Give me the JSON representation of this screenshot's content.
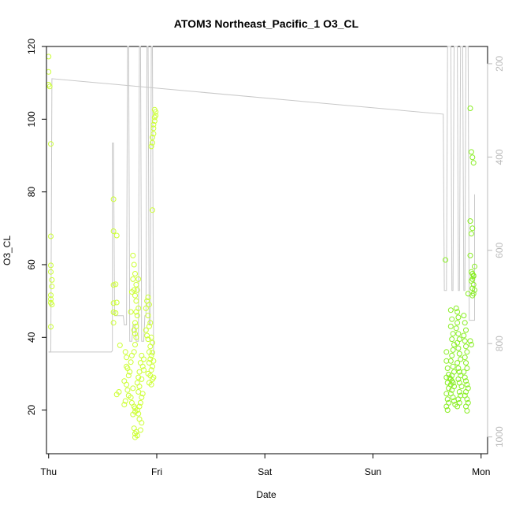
{
  "chart_data": {
    "type": "scatter",
    "title": "ATOM3 Northeast_Pacific_1 O3_CL",
    "xlabel": "Date",
    "ylabel": "O3_CL",
    "x_ticks": [
      "Thu",
      "Fri",
      "Sat",
      "Sun",
      "Mon"
    ],
    "xlim": [
      -0.02,
      4.06
    ],
    "ylim": [
      8,
      120
    ],
    "y_ticks": [
      20,
      40,
      60,
      80,
      100,
      120
    ],
    "y2_ticks": [
      200,
      400,
      600,
      800,
      1000
    ],
    "y2lim": [
      1036,
      163
    ],
    "grid": false,
    "colors": {
      "axis": "#000000",
      "secondary_line": "#c8c8c8",
      "secondary_ticks": "#bbbbbb",
      "points_early": "#ccff33",
      "points_late": "#88ee22"
    },
    "series": [
      {
        "kind": "points",
        "color": "#ccff33",
        "points": [
          [
            0.0,
            117.2
          ],
          [
            0.0,
            113.0
          ],
          [
            0.0,
            109.5
          ],
          [
            0.01,
            109.0
          ],
          [
            0.02,
            93.2
          ],
          [
            0.02,
            67.8
          ],
          [
            0.02,
            59.8
          ],
          [
            0.02,
            58.0
          ],
          [
            0.03,
            55.8
          ],
          [
            0.03,
            54.0
          ],
          [
            0.02,
            51.6
          ],
          [
            0.02,
            50.5
          ],
          [
            0.02,
            49.5
          ],
          [
            0.03,
            49.0
          ],
          [
            0.02,
            42.9
          ],
          [
            0.6,
            78.0
          ],
          [
            0.6,
            69.2
          ],
          [
            0.63,
            68.0
          ],
          [
            0.62,
            54.6
          ],
          [
            0.6,
            54.4
          ],
          [
            0.6,
            49.4
          ],
          [
            0.63,
            49.6
          ],
          [
            0.6,
            46.9
          ],
          [
            0.62,
            46.7
          ],
          [
            0.6,
            44.0
          ],
          [
            0.66,
            37.8
          ],
          [
            0.65,
            25.0
          ],
          [
            0.63,
            24.3
          ],
          [
            0.71,
            36.0
          ],
          [
            0.72,
            34.5
          ],
          [
            0.72,
            32.0
          ],
          [
            0.73,
            31.5
          ],
          [
            0.74,
            29.5
          ],
          [
            0.7,
            28.0
          ],
          [
            0.72,
            27.0
          ],
          [
            0.73,
            25.5
          ],
          [
            0.74,
            24.0
          ],
          [
            0.71,
            22.5
          ],
          [
            0.7,
            21.5
          ],
          [
            0.75,
            30.5
          ],
          [
            0.76,
            33.2
          ],
          [
            0.77,
            35.0
          ],
          [
            0.78,
            26.0
          ],
          [
            0.76,
            23.5
          ],
          [
            0.77,
            22.0
          ],
          [
            0.79,
            21.0
          ],
          [
            0.8,
            20.5
          ],
          [
            0.8,
            19.5
          ],
          [
            0.78,
            18.8
          ],
          [
            0.79,
            15.0
          ],
          [
            0.8,
            13.5
          ],
          [
            0.8,
            12.5
          ],
          [
            0.81,
            14.0
          ],
          [
            0.82,
            13.0
          ],
          [
            0.85,
            14.5
          ],
          [
            0.86,
            16.5
          ],
          [
            0.84,
            17.5
          ],
          [
            0.83,
            19.0
          ],
          [
            0.82,
            20.0
          ],
          [
            0.84,
            21.0
          ],
          [
            0.85,
            22.0
          ],
          [
            0.86,
            23.5
          ],
          [
            0.87,
            24.5
          ],
          [
            0.83,
            25.0
          ],
          [
            0.84,
            26.5
          ],
          [
            0.82,
            27.5
          ],
          [
            0.86,
            28.5
          ],
          [
            0.83,
            29.0
          ],
          [
            0.84,
            30.5
          ],
          [
            0.88,
            31.0
          ],
          [
            0.87,
            32.0
          ],
          [
            0.85,
            33.0
          ],
          [
            0.88,
            34.0
          ],
          [
            0.86,
            35.0
          ],
          [
            0.79,
            36.0
          ],
          [
            0.8,
            38.0
          ],
          [
            0.81,
            40.0
          ],
          [
            0.8,
            41.0
          ],
          [
            0.79,
            42.0
          ],
          [
            0.81,
            43.0
          ],
          [
            0.8,
            44.0
          ],
          [
            0.82,
            46.0
          ],
          [
            0.81,
            47.0
          ],
          [
            0.83,
            48.0
          ],
          [
            0.81,
            50.0
          ],
          [
            0.8,
            51.5
          ],
          [
            0.82,
            53.0
          ],
          [
            0.81,
            54.5
          ],
          [
            0.83,
            56.0
          ],
          [
            0.8,
            57.5
          ],
          [
            0.79,
            60.0
          ],
          [
            0.78,
            62.5
          ],
          [
            0.78,
            56.0
          ],
          [
            0.79,
            53.0
          ],
          [
            0.77,
            52.5
          ],
          [
            0.76,
            47.0
          ],
          [
            0.9,
            48.0
          ],
          [
            0.91,
            50.0
          ],
          [
            0.92,
            51.0
          ],
          [
            0.93,
            49.0
          ],
          [
            0.92,
            46.0
          ],
          [
            0.94,
            44.0
          ],
          [
            0.93,
            43.0
          ],
          [
            0.9,
            42.0
          ],
          [
            0.91,
            40.5
          ],
          [
            0.92,
            39.5
          ],
          [
            0.94,
            37.5
          ],
          [
            0.93,
            36.0
          ],
          [
            0.95,
            35.0
          ],
          [
            0.94,
            34.0
          ],
          [
            0.93,
            33.0
          ],
          [
            0.96,
            32.0
          ],
          [
            0.95,
            31.0
          ],
          [
            0.92,
            30.0
          ],
          [
            0.94,
            29.5
          ],
          [
            0.97,
            29.0
          ],
          [
            0.96,
            28.5
          ],
          [
            0.93,
            27.5
          ],
          [
            0.95,
            27.0
          ],
          [
            0.96,
            35.8
          ],
          [
            0.97,
            33.5
          ],
          [
            0.96,
            75.0
          ],
          [
            0.96,
            93.5
          ],
          [
            0.97,
            96.0
          ],
          [
            0.97,
            97.5
          ],
          [
            0.98,
            99.5
          ],
          [
            0.98,
            100.5
          ],
          [
            0.99,
            101.0
          ],
          [
            0.99,
            102.0
          ],
          [
            0.98,
            102.6
          ],
          [
            0.97,
            98.5
          ],
          [
            0.96,
            95.0
          ],
          [
            0.95,
            92.5
          ],
          [
            0.95,
            40.0
          ],
          [
            0.96,
            38.5
          ]
        ]
      },
      {
        "kind": "points",
        "color": "#88ee22",
        "points": [
          [
            3.67,
            61.3
          ],
          [
            3.68,
            36.0
          ],
          [
            3.68,
            33.5
          ],
          [
            3.69,
            31.5
          ],
          [
            3.68,
            29.0
          ],
          [
            3.69,
            27.5
          ],
          [
            3.7,
            26.0
          ],
          [
            3.68,
            24.5
          ],
          [
            3.69,
            23.0
          ],
          [
            3.7,
            22.0
          ],
          [
            3.68,
            21.0
          ],
          [
            3.69,
            20.0
          ],
          [
            3.72,
            47.5
          ],
          [
            3.73,
            45.0
          ],
          [
            3.72,
            43.0
          ],
          [
            3.74,
            41.0
          ],
          [
            3.73,
            39.5
          ],
          [
            3.75,
            38.0
          ],
          [
            3.74,
            36.5
          ],
          [
            3.73,
            35.0
          ],
          [
            3.72,
            33.5
          ],
          [
            3.74,
            32.0
          ],
          [
            3.75,
            30.5
          ],
          [
            3.73,
            29.5
          ],
          [
            3.72,
            28.5
          ],
          [
            3.74,
            27.5
          ],
          [
            3.75,
            26.5
          ],
          [
            3.73,
            25.5
          ],
          [
            3.72,
            24.5
          ],
          [
            3.74,
            23.5
          ],
          [
            3.75,
            22.5
          ],
          [
            3.76,
            21.5
          ],
          [
            3.73,
            28.0
          ],
          [
            3.71,
            28.8
          ],
          [
            3.72,
            27.0
          ],
          [
            3.7,
            29.8
          ],
          [
            3.77,
            48.0
          ],
          [
            3.78,
            47.0
          ],
          [
            3.79,
            45.5
          ],
          [
            3.78,
            44.0
          ],
          [
            3.77,
            42.5
          ],
          [
            3.79,
            41.0
          ],
          [
            3.8,
            39.5
          ],
          [
            3.78,
            38.5
          ],
          [
            3.79,
            37.0
          ],
          [
            3.8,
            35.5
          ],
          [
            3.81,
            34.0
          ],
          [
            3.78,
            33.0
          ],
          [
            3.79,
            31.5
          ],
          [
            3.8,
            30.5
          ],
          [
            3.81,
            29.5
          ],
          [
            3.79,
            28.5
          ],
          [
            3.8,
            27.5
          ],
          [
            3.82,
            26.5
          ],
          [
            3.8,
            25.0
          ],
          [
            3.81,
            24.0
          ],
          [
            3.79,
            23.0
          ],
          [
            3.8,
            22.0
          ],
          [
            3.78,
            21.0
          ],
          [
            3.84,
            46.0
          ],
          [
            3.85,
            44.0
          ],
          [
            3.86,
            42.0
          ],
          [
            3.84,
            40.5
          ],
          [
            3.85,
            39.0
          ],
          [
            3.86,
            37.5
          ],
          [
            3.87,
            36.0
          ],
          [
            3.85,
            34.5
          ],
          [
            3.86,
            33.0
          ],
          [
            3.87,
            31.5
          ],
          [
            3.84,
            30.5
          ],
          [
            3.85,
            29.0
          ],
          [
            3.86,
            28.0
          ],
          [
            3.87,
            27.0
          ],
          [
            3.88,
            26.0
          ],
          [
            3.86,
            25.0
          ],
          [
            3.85,
            24.0
          ],
          [
            3.87,
            23.0
          ],
          [
            3.88,
            22.0
          ],
          [
            3.86,
            21.0
          ],
          [
            3.87,
            19.8
          ],
          [
            3.88,
            52.0
          ],
          [
            3.9,
            103.0
          ],
          [
            3.91,
            91.0
          ],
          [
            3.92,
            89.5
          ],
          [
            3.93,
            88.0
          ],
          [
            3.9,
            72.0
          ],
          [
            3.92,
            70.0
          ],
          [
            3.91,
            68.5
          ],
          [
            3.9,
            62.5
          ],
          [
            3.91,
            58.0
          ],
          [
            3.92,
            57.5
          ],
          [
            3.93,
            57.0
          ],
          [
            3.92,
            56.0
          ],
          [
            3.91,
            55.5
          ],
          [
            3.93,
            54.5
          ],
          [
            3.92,
            53.5
          ],
          [
            3.94,
            53.0
          ],
          [
            3.93,
            52.0
          ],
          [
            3.92,
            51.5
          ],
          [
            3.94,
            59.5
          ],
          [
            3.93,
            56.8
          ],
          [
            3.91,
            38.0
          ],
          [
            3.9,
            39.0
          ]
        ]
      },
      {
        "kind": "line",
        "axis": "right",
        "color": "#c8c8c8",
        "points": [
          [
            0.0,
            818
          ],
          [
            0.02,
            818
          ],
          [
            0.03,
            232
          ],
          [
            3.65,
            308
          ],
          [
            3.66,
            686
          ],
          [
            3.68,
            686
          ],
          [
            3.69,
            163
          ],
          [
            3.72,
            163
          ],
          [
            3.73,
            686
          ],
          [
            3.74,
            686
          ],
          [
            3.75,
            163
          ],
          [
            3.78,
            163
          ],
          [
            3.79,
            686
          ],
          [
            3.8,
            686
          ],
          [
            3.81,
            163
          ],
          [
            3.83,
            163
          ],
          [
            3.84,
            686
          ],
          [
            3.85,
            686
          ],
          [
            3.86,
            163
          ],
          [
            3.88,
            163
          ],
          [
            3.89,
            750
          ],
          [
            3.94,
            750
          ],
          [
            3.94,
            480
          ]
        ]
      },
      {
        "kind": "line",
        "axis": "right",
        "color": "#c8c8c8",
        "points": [
          [
            0.0,
            818
          ],
          [
            0.58,
            818
          ],
          [
            0.59,
            815
          ],
          [
            0.59,
            370
          ],
          [
            0.6,
            370
          ],
          [
            0.61,
            740
          ],
          [
            0.69,
            740
          ],
          [
            0.7,
            760
          ],
          [
            0.72,
            760
          ],
          [
            0.73,
            163
          ],
          [
            0.74,
            163
          ],
          [
            0.75,
            795
          ],
          [
            0.77,
            795
          ],
          [
            0.78,
            760
          ],
          [
            0.8,
            760
          ],
          [
            0.81,
            795
          ],
          [
            0.83,
            795
          ],
          [
            0.84,
            163
          ],
          [
            0.85,
            163
          ],
          [
            0.86,
            795
          ],
          [
            0.88,
            795
          ],
          [
            0.89,
            740
          ],
          [
            0.9,
            740
          ],
          [
            0.91,
            163
          ],
          [
            0.92,
            163
          ],
          [
            0.93,
            760
          ],
          [
            0.94,
            760
          ],
          [
            0.95,
            163
          ],
          [
            0.96,
            163
          ],
          [
            0.97,
            825
          ],
          [
            0.97,
            790
          ]
        ]
      }
    ]
  }
}
